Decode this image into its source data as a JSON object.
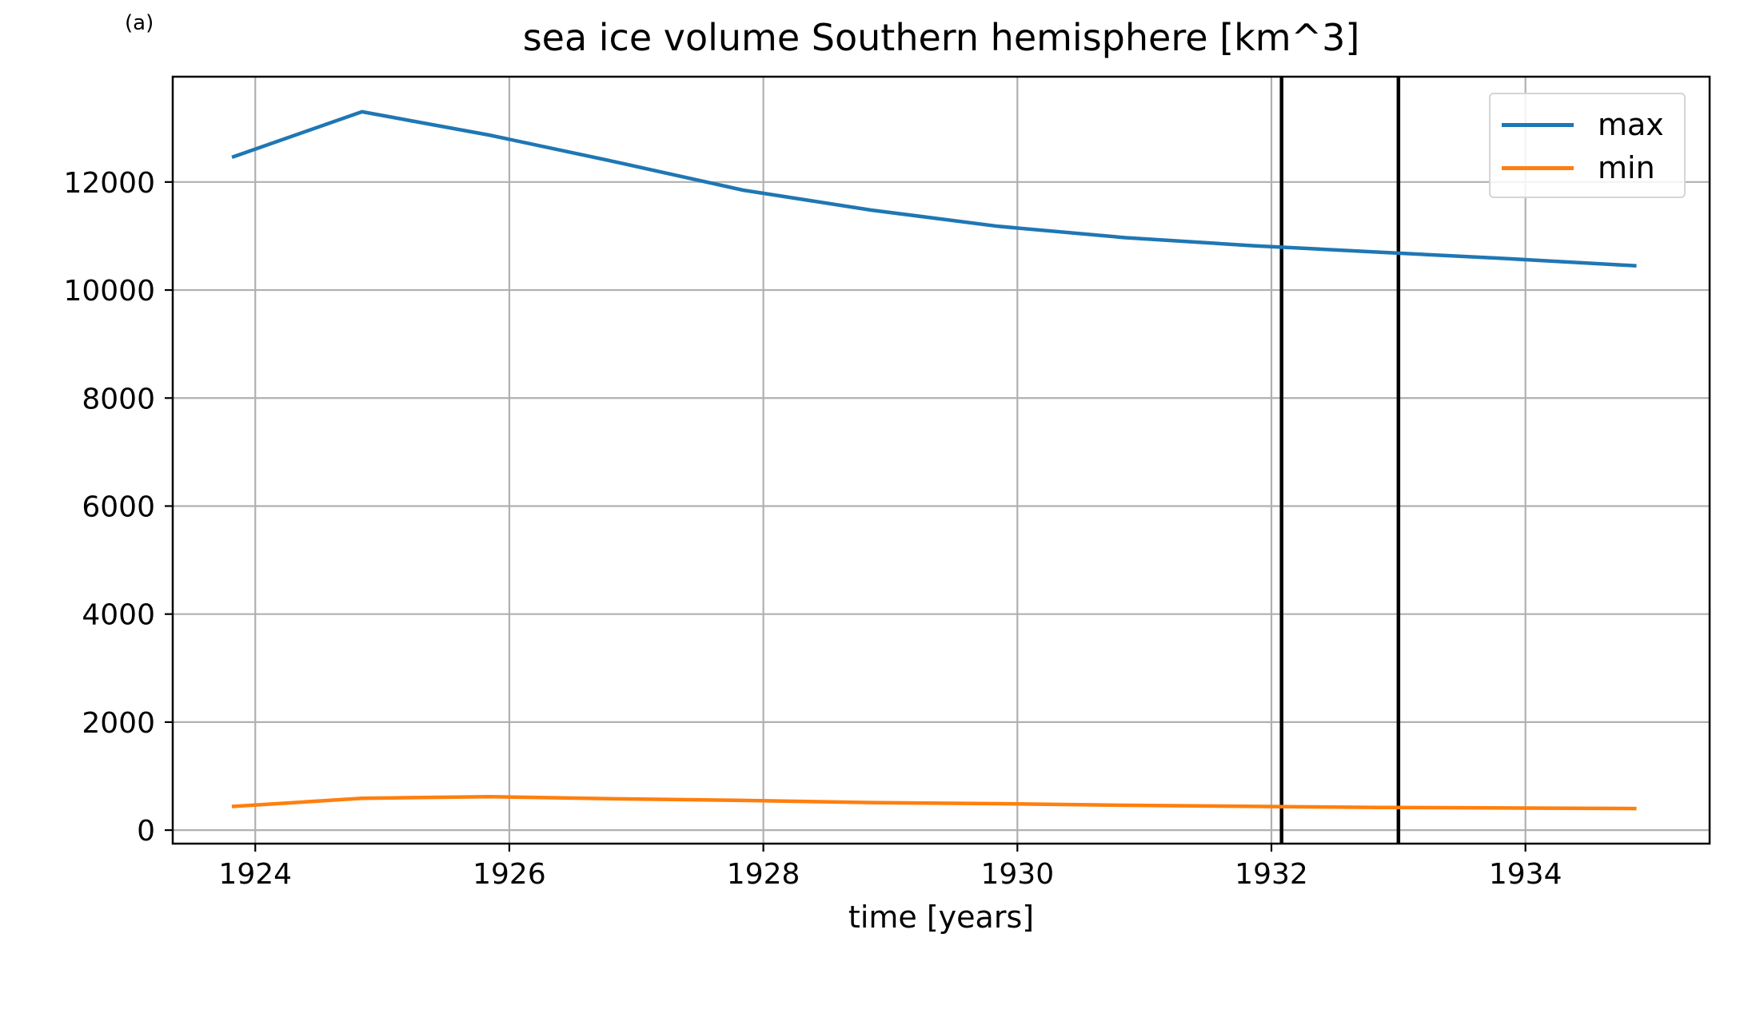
{
  "panel_label": "(a)",
  "chart_data": {
    "type": "line",
    "title": "sea ice volume Southern hemisphere [km^3]",
    "xlabel": "time [years]",
    "ylabel": "",
    "xlim": [
      1923.35,
      1935.45
    ],
    "ylim": [
      -250,
      13950
    ],
    "x_ticks": [
      1924,
      1926,
      1928,
      1930,
      1932,
      1934
    ],
    "y_ticks": [
      0,
      2000,
      4000,
      6000,
      8000,
      10000,
      12000
    ],
    "grid": true,
    "legend_position": "top-right",
    "series": [
      {
        "name": "max",
        "color": "#1f77b4",
        "x": [
          1923.83,
          1924.84,
          1925.84,
          1926.84,
          1927.84,
          1928.85,
          1929.85,
          1930.85,
          1931.86,
          1932.86,
          1933.86,
          1934.86
        ],
        "y": [
          12470,
          13300,
          12870,
          12370,
          11850,
          11480,
          11180,
          10970,
          10820,
          10700,
          10580,
          10450
        ]
      },
      {
        "name": "min",
        "color": "#ff7f0e",
        "x": [
          1923.83,
          1924.84,
          1925.84,
          1926.84,
          1927.84,
          1928.85,
          1929.85,
          1930.85,
          1931.86,
          1932.86,
          1933.86,
          1934.86
        ],
        "y": [
          440,
          590,
          620,
          580,
          550,
          510,
          490,
          460,
          440,
          420,
          410,
          400
        ]
      }
    ],
    "vertical_lines": [
      {
        "x": 1932.08,
        "color": "#000000"
      },
      {
        "x": 1933.0,
        "color": "#000000"
      }
    ]
  }
}
